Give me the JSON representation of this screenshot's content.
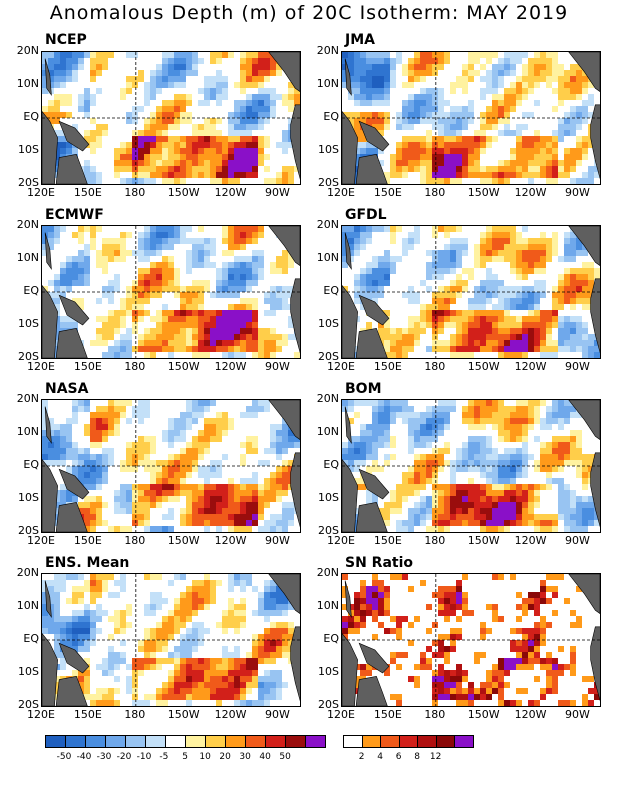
{
  "title": "Anomalous Depth (m) of 20C Isotherm: MAY 2019",
  "lat_labels": [
    "20N",
    "10N",
    "EQ",
    "10S",
    "20S"
  ],
  "lon_labels": [
    "120E",
    "150E",
    "180",
    "150W",
    "120W",
    "90W"
  ],
  "panels": [
    {
      "name": "NCEP",
      "kind": "anom",
      "seed": 11
    },
    {
      "name": "JMA",
      "kind": "anom",
      "seed": 23
    },
    {
      "name": "ECMWF",
      "kind": "anom",
      "seed": 37
    },
    {
      "name": "GFDL",
      "kind": "anom",
      "seed": 41
    },
    {
      "name": "NASA",
      "kind": "anom",
      "seed": 53
    },
    {
      "name": "BOM",
      "kind": "anom",
      "seed": 67
    },
    {
      "name": "ENS. Mean",
      "kind": "anom",
      "seed": 79
    },
    {
      "name": "SN Ratio",
      "kind": "ratio",
      "seed": 97
    }
  ],
  "anom_colorbar": {
    "labels": [
      "-50",
      "-40",
      "-30",
      "-20",
      "-10",
      "-5",
      "5",
      "10",
      "20",
      "30",
      "40",
      "50"
    ],
    "colors": [
      "#1f5fbf",
      "#2f74d0",
      "#4a8ee0",
      "#6fa8eb",
      "#98c4f2",
      "#c3e0f8",
      "#ffffff",
      "#fff2a0",
      "#ffce4a",
      "#ff9a1a",
      "#f05a1a",
      "#d2201a",
      "#9a0d0d",
      "#8a10c8"
    ]
  },
  "ratio_colorbar": {
    "labels": [
      "2",
      "4",
      "6",
      "8",
      "12"
    ],
    "colors": [
      "#ffffff",
      "#ff9a1a",
      "#f05a1a",
      "#d2201a",
      "#b01010",
      "#8a0808",
      "#8a10c8"
    ]
  },
  "colors": {
    "land": "#5f5f5f",
    "frame": "#000000"
  }
}
